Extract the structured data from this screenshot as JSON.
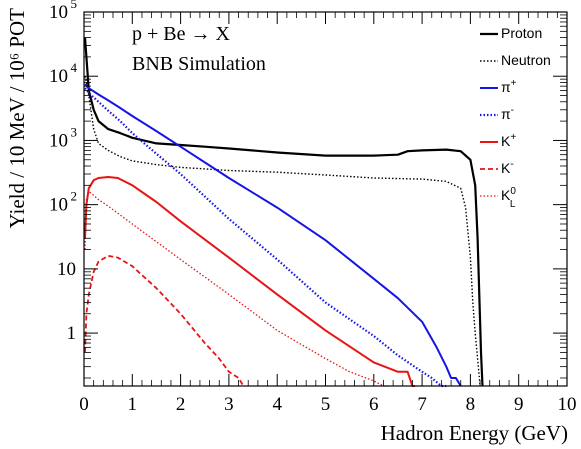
{
  "chart_data": {
    "type": "line",
    "title_lines": [
      "p + Be → X",
      "BNB Simulation"
    ],
    "xlabel": "Hadron Energy (GeV)",
    "ylabel": "Yield / 10 MeV / 10⁶ POT",
    "xlim": [
      0,
      10
    ],
    "ylim": [
      0.15,
      100000
    ],
    "y_scale": "log",
    "x_ticks": [
      0,
      1,
      2,
      3,
      4,
      5,
      6,
      7,
      8,
      9,
      10
    ],
    "x_tick_labels": [
      "0",
      "1",
      "2",
      "3",
      "4",
      "5",
      "6",
      "7",
      "8",
      "9",
      "10"
    ],
    "y_ticks": [
      1,
      10,
      100,
      1000,
      10000,
      100000
    ],
    "y_tick_labels": [
      {
        "base": "1",
        "exp": ""
      },
      {
        "base": "10",
        "exp": ""
      },
      {
        "base": "10",
        "exp": "2"
      },
      {
        "base": "10",
        "exp": "3"
      },
      {
        "base": "10",
        "exp": "4"
      },
      {
        "base": "10",
        "exp": "5"
      }
    ],
    "grid": false,
    "legend_position": "top-right",
    "series": [
      {
        "name": "Proton",
        "label_base": "Proton",
        "label_sup": "",
        "label_sub": "",
        "color": "#000000",
        "style": "solid",
        "width": 2.2,
        "x": [
          0.02,
          0.05,
          0.1,
          0.2,
          0.3,
          0.5,
          0.75,
          1.0,
          1.5,
          2.0,
          2.5,
          3.0,
          4.0,
          5.0,
          6.0,
          6.5,
          6.7,
          7.0,
          7.5,
          7.8,
          8.0,
          8.1,
          8.15,
          8.2,
          8.22,
          8.25
        ],
        "y": [
          40000,
          20000,
          6000,
          3000,
          2000,
          1500,
          1300,
          1100,
          900,
          850,
          800,
          750,
          650,
          580,
          580,
          600,
          680,
          700,
          720,
          680,
          500,
          200,
          30,
          1.5,
          0.5,
          0.15
        ]
      },
      {
        "name": "Neutron",
        "label_base": "Neutron",
        "label_sup": "",
        "label_sub": "",
        "color": "#000000",
        "style": "dotted",
        "width": 1.4,
        "x": [
          0.02,
          0.05,
          0.1,
          0.2,
          0.3,
          0.5,
          0.75,
          1.0,
          1.5,
          2.0,
          2.5,
          3.0,
          4.0,
          5.0,
          6.0,
          7.0,
          7.5,
          7.8,
          7.9,
          8.0,
          8.05,
          8.1,
          8.15,
          8.2
        ],
        "y": [
          10000,
          8000,
          5000,
          1500,
          900,
          700,
          560,
          480,
          420,
          380,
          360,
          340,
          320,
          290,
          260,
          250,
          230,
          180,
          90,
          15,
          3,
          1,
          0.4,
          0.15
        ]
      },
      {
        "name": "π+",
        "label_base": "π",
        "label_sup": "+",
        "label_sub": "",
        "color": "#1414e6",
        "style": "solid",
        "width": 2,
        "x": [
          0.02,
          0.1,
          0.3,
          0.5,
          0.75,
          1.0,
          1.5,
          2.0,
          3.0,
          4.0,
          5.0,
          6.0,
          6.5,
          7.0,
          7.3,
          7.5,
          7.6,
          7.7,
          7.8
        ],
        "y": [
          7500,
          6500,
          5200,
          4200,
          3200,
          2400,
          1400,
          800,
          260,
          90,
          28,
          7,
          3.5,
          1.5,
          0.6,
          0.3,
          0.2,
          0.2,
          0.15
        ]
      },
      {
        "name": "π-",
        "label_base": "π",
        "label_sup": "-",
        "label_sub": "",
        "color": "#1414e6",
        "style": "dotted",
        "width": 2.2,
        "x": [
          0.02,
          0.1,
          0.3,
          0.5,
          0.75,
          1.0,
          1.5,
          2.0,
          3.0,
          4.0,
          5.0,
          6.0,
          6.5,
          7.0,
          7.2,
          7.4,
          7.5
        ],
        "y": [
          6500,
          5500,
          4000,
          2900,
          2000,
          1300,
          620,
          300,
          60,
          14,
          3,
          0.9,
          0.45,
          0.25,
          0.2,
          0.15,
          0.15
        ]
      },
      {
        "name": "K+",
        "label_base": "K",
        "label_sup": "+",
        "label_sub": "",
        "color": "#e61414",
        "style": "solid",
        "width": 2,
        "x": [
          0.02,
          0.05,
          0.1,
          0.2,
          0.3,
          0.5,
          0.7,
          1.0,
          1.5,
          2.0,
          3.0,
          4.0,
          5.0,
          6.0,
          6.5,
          6.7,
          6.8,
          6.85
        ],
        "y": [
          30,
          100,
          180,
          240,
          260,
          270,
          260,
          200,
          110,
          55,
          15,
          4,
          1.1,
          0.35,
          0.25,
          0.25,
          0.15,
          0.15
        ]
      },
      {
        "name": "K-",
        "label_base": "K",
        "label_sup": "-",
        "label_sub": "",
        "color": "#e61414",
        "style": "dashed",
        "width": 1.8,
        "x": [
          0.02,
          0.05,
          0.1,
          0.2,
          0.3,
          0.5,
          0.7,
          1.0,
          1.5,
          2.0,
          2.5,
          2.8,
          3.0,
          3.2,
          3.3
        ],
        "y": [
          0.5,
          2,
          4,
          9,
          13,
          16,
          15,
          11,
          5,
          2,
          0.7,
          0.4,
          0.25,
          0.2,
          0.15
        ]
      },
      {
        "name": "K0L",
        "label_base": "K",
        "label_sup": "0",
        "label_sub": "L",
        "color": "#e61414",
        "style": "dotted",
        "width": 1.3,
        "x": [
          0.02,
          0.05,
          0.1,
          0.2,
          0.3,
          0.5,
          1.0,
          2.0,
          3.0,
          4.0,
          5.0,
          5.5,
          6.0,
          6.2,
          6.3
        ],
        "y": [
          20,
          120,
          160,
          140,
          120,
          95,
          50,
          14,
          4,
          1.1,
          0.4,
          0.25,
          0.18,
          0.15,
          0.15
        ]
      }
    ]
  }
}
